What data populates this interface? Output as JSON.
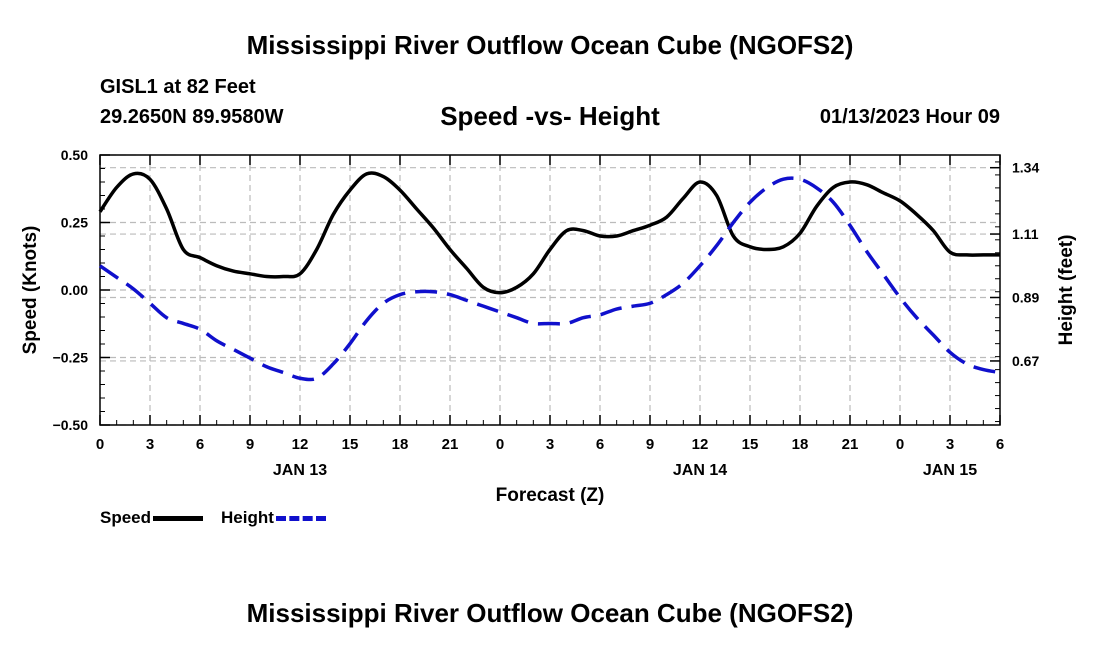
{
  "header": {
    "title": "Mississippi River Outflow Ocean Cube (NGOFS2)",
    "station": "GISL1 at 82 Feet",
    "coords": "29.2650N  89.9580W",
    "subtitle": "Speed -vs- Height",
    "datetime": "01/13/2023 Hour 09"
  },
  "footer": {
    "title": "Mississippi River Outflow Ocean Cube (NGOFS2)"
  },
  "legend": {
    "speed": "Speed",
    "height": "Height"
  },
  "colors": {
    "speed": "#000000",
    "height": "#1010cc",
    "grid": "#bbbbbb"
  },
  "chart_data": {
    "type": "line",
    "title": "Speed -vs- Height",
    "xlabel": "Forecast (Z)",
    "ylabel": "Speed (Knots)",
    "y2label": "Height (feet)",
    "xlim": [
      0,
      54
    ],
    "ylim": [
      -0.5,
      0.5
    ],
    "y2lim": [
      0.448,
      1.384
    ],
    "x_tick_labels": [
      "0",
      "3",
      "6",
      "9",
      "12",
      "15",
      "18",
      "21",
      "0",
      "3",
      "6",
      "9",
      "12",
      "15",
      "18",
      "21",
      "0",
      "3",
      "6"
    ],
    "day_labels": [
      {
        "label": "JAN 13",
        "hour": 12
      },
      {
        "label": "JAN 14",
        "hour": 36
      },
      {
        "label": "JAN 15",
        "hour": 51
      }
    ],
    "y_ticks": [
      {
        "value": -0.5,
        "label": "−0.50"
      },
      {
        "value": -0.25,
        "label": "−0.25"
      },
      {
        "value": 0,
        "label": "0.00"
      },
      {
        "value": 0.25,
        "label": "0.25"
      },
      {
        "value": 0.5,
        "label": "0.50"
      }
    ],
    "y2_ticks": [
      {
        "value": 0.67,
        "label": "0.67"
      },
      {
        "value": 0.89,
        "label": "0.89"
      },
      {
        "value": 1.11,
        "label": "1.11"
      },
      {
        "value": 1.34,
        "label": "1.34"
      }
    ],
    "series": [
      {
        "name": "Speed",
        "axis": "left",
        "style": "solid",
        "x": [
          0,
          1,
          2,
          3,
          4,
          5,
          6,
          7,
          8,
          9,
          10,
          11,
          12,
          13,
          14,
          15,
          16,
          17,
          18,
          19,
          20,
          21,
          22,
          23,
          24,
          25,
          26,
          27,
          28,
          29,
          30,
          31,
          32,
          33,
          34,
          35,
          36,
          37,
          38,
          39,
          40,
          41,
          42,
          43,
          44,
          45,
          46,
          47,
          48,
          49,
          50,
          51,
          52,
          53,
          54
        ],
        "values": [
          0.29,
          0.38,
          0.43,
          0.41,
          0.3,
          0.15,
          0.12,
          0.09,
          0.07,
          0.06,
          0.05,
          0.05,
          0.06,
          0.15,
          0.28,
          0.37,
          0.43,
          0.42,
          0.37,
          0.3,
          0.23,
          0.15,
          0.08,
          0.01,
          -0.01,
          0.01,
          0.06,
          0.15,
          0.22,
          0.22,
          0.2,
          0.2,
          0.22,
          0.24,
          0.27,
          0.34,
          0.4,
          0.35,
          0.2,
          0.16,
          0.15,
          0.16,
          0.21,
          0.31,
          0.38,
          0.4,
          0.39,
          0.36,
          0.33,
          0.28,
          0.22,
          0.14,
          0.13,
          0.13,
          0.13
        ]
      },
      {
        "name": "Height",
        "axis": "right",
        "style": "dashed",
        "x": [
          0,
          1,
          2,
          3,
          4,
          5,
          6,
          7,
          8,
          9,
          10,
          11,
          12,
          13,
          14,
          15,
          16,
          17,
          18,
          19,
          20,
          21,
          22,
          23,
          24,
          25,
          26,
          27,
          28,
          29,
          30,
          31,
          32,
          33,
          34,
          35,
          36,
          37,
          38,
          39,
          40,
          41,
          42,
          43,
          44,
          45,
          46,
          47,
          48,
          49,
          50,
          51,
          52,
          53,
          54
        ],
        "values": [
          1.0,
          0.96,
          0.92,
          0.87,
          0.82,
          0.8,
          0.78,
          0.74,
          0.71,
          0.68,
          0.65,
          0.63,
          0.61,
          0.61,
          0.66,
          0.73,
          0.81,
          0.87,
          0.9,
          0.91,
          0.91,
          0.9,
          0.88,
          0.86,
          0.84,
          0.82,
          0.8,
          0.8,
          0.8,
          0.82,
          0.83,
          0.85,
          0.86,
          0.87,
          0.9,
          0.94,
          1.0,
          1.07,
          1.15,
          1.22,
          1.27,
          1.3,
          1.3,
          1.27,
          1.22,
          1.14,
          1.05,
          0.97,
          0.89,
          0.82,
          0.76,
          0.7,
          0.66,
          0.64,
          0.63
        ]
      }
    ]
  }
}
